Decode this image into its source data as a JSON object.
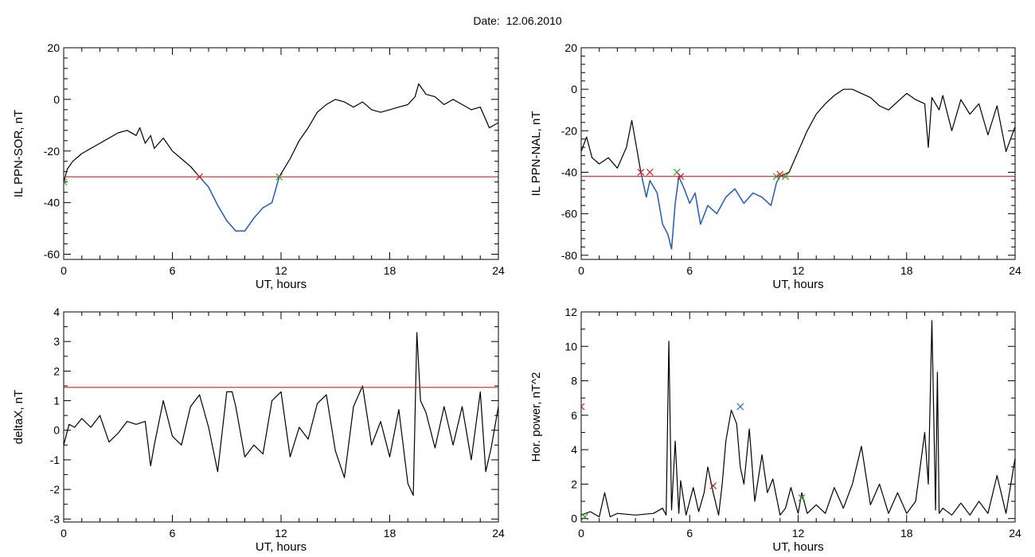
{
  "title": {
    "label": "Date:",
    "value": "12.06.2010"
  },
  "colors": {
    "signal": "#000000",
    "interval": "#1f5fbf",
    "threshold": "#d62020",
    "start_marker": "#2ca02c",
    "end_marker": "#d62020",
    "peak_marker": "#1f77b4"
  },
  "chart_data": [
    {
      "type": "line",
      "id": "p1",
      "xlabel": "UT, hours",
      "ylabel": "IL PPN-SOR, nT",
      "xlim": [
        0,
        24
      ],
      "ylim": [
        -62,
        20
      ],
      "xticks": [
        0,
        6,
        12,
        18,
        24
      ],
      "yticks": [
        -60,
        -40,
        -20,
        0,
        20
      ],
      "threshold": -30,
      "highlight_range": [
        7.5,
        11.9
      ],
      "series": [
        {
          "x": [
            0,
            0.2,
            0.5,
            1,
            1.5,
            2,
            2.5,
            3,
            3.5,
            4,
            4.2,
            4.5,
            4.8,
            5,
            5.5,
            6,
            6.5,
            7,
            7.5,
            8,
            8.5,
            9,
            9.5,
            10,
            10.5,
            11,
            11.5,
            11.9,
            12.5,
            13,
            13.5,
            14,
            14.5,
            15,
            15.5,
            16,
            16.5,
            17,
            17.5,
            18,
            18.5,
            19,
            19.4,
            19.6,
            20,
            20.5,
            21,
            21.5,
            22,
            22.5,
            23,
            23.5,
            24
          ],
          "y": [
            -32,
            -27,
            -24,
            -21,
            -19,
            -17,
            -15,
            -13,
            -12,
            -14,
            -11,
            -17,
            -14,
            -19,
            -15,
            -20,
            -23,
            -26,
            -30,
            -34,
            -41,
            -47,
            -51,
            -51,
            -46,
            -42,
            -40,
            -30,
            -23,
            -16,
            -11,
            -5,
            -2,
            0,
            -1,
            -3,
            -1,
            -4,
            -5,
            -4,
            -3,
            -2,
            1,
            6,
            2,
            1,
            -2,
            0,
            -2,
            -4,
            -3,
            -11,
            -9
          ]
        }
      ],
      "markers": [
        {
          "x": 0,
          "y": -32,
          "kind": "start"
        },
        {
          "x": 7.5,
          "y": -30,
          "kind": "end"
        },
        {
          "x": 11.9,
          "y": -30,
          "kind": "start"
        }
      ]
    },
    {
      "type": "line",
      "id": "p2",
      "xlabel": "UT, hours",
      "ylabel": "IL PPN-NAL, nT",
      "xlim": [
        0,
        24
      ],
      "ylim": [
        -82,
        20
      ],
      "xticks": [
        0,
        6,
        12,
        18,
        24
      ],
      "yticks": [
        -80,
        -60,
        -40,
        -20,
        0,
        20
      ],
      "threshold": -42,
      "highlight_range": [
        3.3,
        11.0
      ],
      "series": [
        {
          "x": [
            0,
            0.3,
            0.6,
            1,
            1.5,
            2,
            2.5,
            2.8,
            3.1,
            3.3,
            3.6,
            3.8,
            4.2,
            4.5,
            4.8,
            5.0,
            5.2,
            5.4,
            5.7,
            6.0,
            6.3,
            6.6,
            7,
            7.5,
            8,
            8.5,
            9,
            9.5,
            10,
            10.5,
            10.8,
            11.0,
            11.5,
            12,
            12.5,
            13,
            13.5,
            14,
            14.5,
            15,
            15.5,
            16,
            16.5,
            17,
            17.5,
            18,
            18.5,
            19,
            19.2,
            19.4,
            19.8,
            20,
            20.5,
            21,
            21.5,
            22,
            22.5,
            23,
            23.5,
            24
          ],
          "y": [
            -30,
            -23,
            -33,
            -36,
            -33,
            -38,
            -28,
            -15,
            -30,
            -40,
            -52,
            -44,
            -50,
            -65,
            -70,
            -77,
            -55,
            -42,
            -48,
            -55,
            -50,
            -65,
            -56,
            -60,
            -52,
            -48,
            -55,
            -50,
            -52,
            -56,
            -45,
            -42,
            -40,
            -30,
            -20,
            -12,
            -7,
            -3,
            0,
            0,
            -2,
            -4,
            -8,
            -10,
            -6,
            -2,
            -5,
            -7,
            -28,
            -4,
            -10,
            -3,
            -20,
            -5,
            -12,
            -7,
            -22,
            -8,
            -30,
            -18
          ]
        }
      ],
      "markers": [
        {
          "x": 3.3,
          "y": -40,
          "kind": "end"
        },
        {
          "x": 3.8,
          "y": -40,
          "kind": "end"
        },
        {
          "x": 5.3,
          "y": -40,
          "kind": "start"
        },
        {
          "x": 5.5,
          "y": -42,
          "kind": "end"
        },
        {
          "x": 10.8,
          "y": -42,
          "kind": "start"
        },
        {
          "x": 11.0,
          "y": -41,
          "kind": "end"
        },
        {
          "x": 11.3,
          "y": -42,
          "kind": "start"
        }
      ]
    },
    {
      "type": "line",
      "id": "p3",
      "xlabel": "UT, hours",
      "ylabel": "deltaX, nT",
      "xlim": [
        0,
        24
      ],
      "ylim": [
        -3.1,
        4
      ],
      "xticks": [
        0,
        6,
        12,
        18,
        24
      ],
      "yticks": [
        -3,
        -2,
        -1,
        0,
        1,
        2,
        3,
        4
      ],
      "threshold": 1.45,
      "series": [
        {
          "x": [
            0,
            0.3,
            0.6,
            1,
            1.5,
            2,
            2.5,
            3,
            3.5,
            4,
            4.5,
            4.8,
            5,
            5.5,
            6,
            6.5,
            7,
            7.5,
            8,
            8.5,
            9,
            9.3,
            9.5,
            10,
            10.5,
            11,
            11.5,
            12,
            12.5,
            13,
            13.5,
            14,
            14.5,
            15,
            15.5,
            16,
            16.5,
            17,
            17.5,
            18,
            18.5,
            19,
            19.3,
            19.5,
            19.7,
            20,
            20.5,
            21,
            21.5,
            22,
            22.5,
            23,
            23.3,
            23.6,
            24
          ],
          "y": [
            -0.5,
            0.2,
            0.1,
            0.4,
            0.1,
            0.5,
            -0.4,
            -0.1,
            0.3,
            0.2,
            0.3,
            -1.2,
            -0.5,
            1.0,
            -0.2,
            -0.5,
            0.8,
            1.2,
            0.1,
            -1.4,
            1.3,
            1.3,
            0.8,
            -0.9,
            -0.5,
            -0.8,
            1.0,
            1.3,
            -0.9,
            0.1,
            -0.3,
            0.9,
            1.2,
            -0.7,
            -1.6,
            0.8,
            1.5,
            -0.5,
            0.3,
            -0.9,
            0.7,
            -1.8,
            -2.2,
            3.3,
            1.0,
            0.6,
            -0.6,
            0.8,
            -0.5,
            0.8,
            -1.0,
            1.3,
            -1.4,
            -0.6,
            0.8
          ]
        }
      ]
    },
    {
      "type": "line",
      "id": "p4",
      "xlabel": "UT, hours",
      "ylabel": "Hor. power, nT^2",
      "xlim": [
        0,
        24
      ],
      "ylim": [
        -0.2,
        12
      ],
      "xticks": [
        0,
        6,
        12,
        18,
        24
      ],
      "yticks": [
        0,
        2,
        4,
        6,
        8,
        10,
        12
      ],
      "series": [
        {
          "x": [
            0,
            0.5,
            1,
            1.3,
            1.6,
            2,
            3,
            4,
            4.5,
            4.7,
            4.85,
            5,
            5.2,
            5.4,
            5.5,
            5.8,
            6.2,
            6.5,
            6.8,
            7,
            7.3,
            7.6,
            7.8,
            8,
            8.3,
            8.6,
            8.8,
            9,
            9.3,
            9.6,
            10,
            10.3,
            10.6,
            11,
            11.3,
            11.6,
            12,
            12.2,
            12.5,
            13,
            13.5,
            14,
            14.5,
            15,
            15.5,
            16,
            16.5,
            17,
            17.5,
            18,
            18.5,
            19,
            19.2,
            19.4,
            19.6,
            19.7,
            19.8,
            20,
            20.5,
            21,
            21.5,
            22,
            22.5,
            23,
            23.5,
            24
          ],
          "y": [
            0.2,
            0.4,
            0.1,
            1.5,
            0.1,
            0.3,
            0.2,
            0.3,
            0.6,
            0.2,
            10.3,
            0.5,
            4.5,
            0.3,
            2.2,
            0.2,
            1.8,
            0.4,
            1.5,
            3.0,
            1.5,
            0.2,
            2.0,
            4.5,
            6.3,
            5.5,
            3.0,
            2.0,
            5.2,
            1.0,
            3.7,
            1.5,
            2.3,
            0.2,
            0.6,
            1.8,
            0.3,
            1.5,
            0.3,
            0.8,
            0.3,
            1.8,
            0.6,
            2.0,
            4.2,
            0.8,
            2.0,
            0.3,
            1.5,
            0.3,
            1.0,
            5.0,
            2.0,
            11.5,
            0.5,
            8.5,
            0.3,
            0.6,
            0.2,
            0.9,
            0.2,
            1.0,
            0.3,
            2.5,
            0.3,
            3.5
          ]
        }
      ],
      "markers": [
        {
          "x": 0,
          "y": 6.5,
          "kind": "end"
        },
        {
          "x": 0.2,
          "y": 0.1,
          "kind": "start"
        },
        {
          "x": 7.3,
          "y": 1.9,
          "kind": "end"
        },
        {
          "x": 8.8,
          "y": 6.5,
          "kind": "peak"
        },
        {
          "x": 12.2,
          "y": 1.2,
          "kind": "start"
        }
      ]
    }
  ]
}
